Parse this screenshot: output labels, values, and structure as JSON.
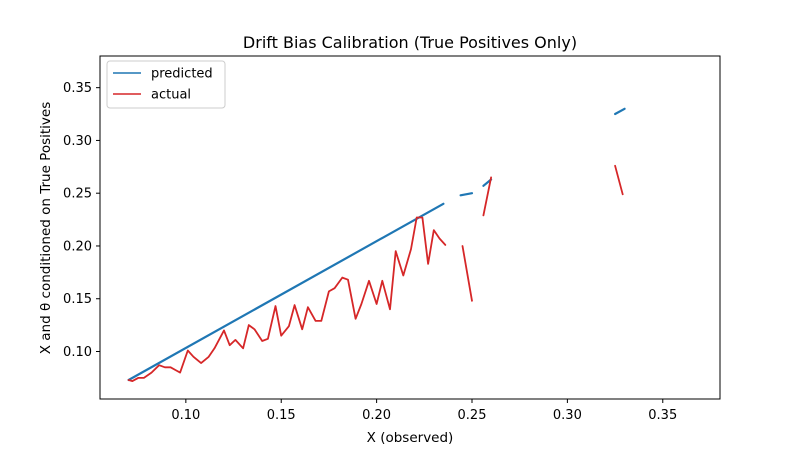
{
  "chart_data": {
    "type": "line",
    "title": "Drift Bias Calibration (True Positives Only)",
    "xlabel": "X (observed)",
    "ylabel": "X and θ conditioned on True Positives",
    "xlim": [
      0.055,
      0.38
    ],
    "ylim": [
      0.055,
      0.38
    ],
    "xticks": [
      0.1,
      0.15,
      0.2,
      0.25,
      0.3,
      0.35
    ],
    "yticks": [
      0.1,
      0.15,
      0.2,
      0.25,
      0.3,
      0.35
    ],
    "xtick_labels": [
      "0.10",
      "0.15",
      "0.20",
      "0.25",
      "0.30",
      "0.35"
    ],
    "ytick_labels": [
      "0.10",
      "0.15",
      "0.20",
      "0.25",
      "0.30",
      "0.35"
    ],
    "grid": false,
    "legend": {
      "position": "top-left",
      "entries": [
        "predicted",
        "actual"
      ]
    },
    "series": [
      {
        "name": "predicted",
        "color": "#1f77b4",
        "segments": [
          [
            [
              0.07,
              0.073
            ],
            [
              0.235,
              0.24
            ]
          ],
          [
            [
              0.244,
              0.248
            ],
            [
              0.25,
              0.25
            ]
          ],
          [
            [
              0.256,
              0.257
            ],
            [
              0.26,
              0.263
            ]
          ],
          [
            [
              0.325,
              0.325
            ],
            [
              0.33,
              0.33
            ]
          ]
        ]
      },
      {
        "name": "actual",
        "color": "#d62728",
        "segments": [
          [
            [
              0.07,
              0.073
            ],
            [
              0.072,
              0.072
            ],
            [
              0.075,
              0.075
            ],
            [
              0.078,
              0.075
            ],
            [
              0.082,
              0.08
            ],
            [
              0.086,
              0.087
            ],
            [
              0.089,
              0.085
            ],
            [
              0.092,
              0.085
            ],
            [
              0.095,
              0.082
            ],
            [
              0.097,
              0.08
            ],
            [
              0.101,
              0.101
            ],
            [
              0.104,
              0.095
            ],
            [
              0.108,
              0.089
            ],
            [
              0.112,
              0.095
            ],
            [
              0.115,
              0.103
            ],
            [
              0.12,
              0.12
            ],
            [
              0.123,
              0.106
            ],
            [
              0.126,
              0.111
            ],
            [
              0.13,
              0.103
            ],
            [
              0.133,
              0.125
            ],
            [
              0.136,
              0.121
            ],
            [
              0.14,
              0.11
            ],
            [
              0.143,
              0.112
            ],
            [
              0.147,
              0.143
            ],
            [
              0.15,
              0.115
            ],
            [
              0.154,
              0.124
            ],
            [
              0.157,
              0.144
            ],
            [
              0.161,
              0.121
            ],
            [
              0.164,
              0.142
            ],
            [
              0.168,
              0.129
            ],
            [
              0.171,
              0.129
            ],
            [
              0.175,
              0.157
            ],
            [
              0.178,
              0.16
            ],
            [
              0.182,
              0.17
            ],
            [
              0.185,
              0.168
            ],
            [
              0.189,
              0.131
            ],
            [
              0.192,
              0.145
            ],
            [
              0.196,
              0.167
            ],
            [
              0.2,
              0.145
            ],
            [
              0.203,
              0.167
            ],
            [
              0.207,
              0.14
            ],
            [
              0.21,
              0.195
            ],
            [
              0.214,
              0.172
            ],
            [
              0.218,
              0.197
            ],
            [
              0.221,
              0.227
            ],
            [
              0.224,
              0.227
            ],
            [
              0.227,
              0.183
            ],
            [
              0.23,
              0.215
            ],
            [
              0.233,
              0.207
            ],
            [
              0.236,
              0.201
            ]
          ],
          [
            [
              0.245,
              0.2
            ],
            [
              0.25,
              0.148
            ]
          ],
          [
            [
              0.256,
              0.229
            ],
            [
              0.26,
              0.265
            ]
          ],
          [
            [
              0.325,
              0.276
            ],
            [
              0.329,
              0.249
            ]
          ]
        ]
      }
    ]
  }
}
